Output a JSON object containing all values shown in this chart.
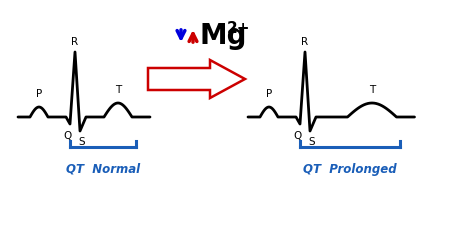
{
  "ecg_color": "#000000",
  "bracket_color": "#1a5eb8",
  "label_color": "#1a5eb8",
  "label_left": "QT  Normal",
  "label_right": "QT  Prolonged",
  "bg_color": "#ffffff",
  "big_arrow_color": "#cc0000",
  "arrow_down_color": "#0000dd",
  "arrow_up_color": "#cc0000",
  "mg_text": "Mg",
  "mg_super": "2+",
  "fig_w": 4.71,
  "fig_h": 2.37,
  "dpi": 100
}
